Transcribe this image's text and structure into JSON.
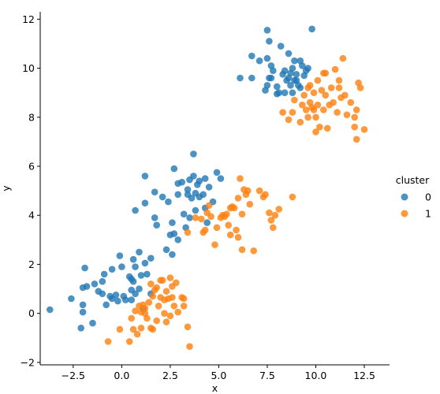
{
  "chart_data": {
    "type": "scatter",
    "xlabel": "x",
    "ylabel": "y",
    "xlim": [
      -4.2,
      13.8
    ],
    "ylim": [
      -2.1,
      12.3
    ],
    "xticks": [
      -2.5,
      0.0,
      2.5,
      5.0,
      7.5,
      10.0,
      12.5
    ],
    "xtick_labels": [
      "−2.5",
      "0.0",
      "2.5",
      "5.0",
      "7.5",
      "10.0",
      "12.5"
    ],
    "yticks": [
      -2,
      0,
      2,
      4,
      6,
      8,
      10,
      12
    ],
    "ytick_labels": [
      "−2",
      "0",
      "2",
      "4",
      "6",
      "8",
      "10",
      "12"
    ],
    "grid": false,
    "legend": {
      "title": "cluster",
      "placement": "right"
    },
    "series": [
      {
        "name": "0",
        "color": "#1f77b4",
        "points": [
          [
            -3.7,
            0.15
          ],
          [
            -2.6,
            0.6
          ],
          [
            -2.1,
            -0.6
          ],
          [
            -2.0,
            0.05
          ],
          [
            -2.0,
            1.05
          ],
          [
            -1.9,
            1.85
          ],
          [
            -1.8,
            1.1
          ],
          [
            -2.0,
            0.35
          ],
          [
            -1.5,
            -0.4
          ],
          [
            -1.4,
            1.2
          ],
          [
            -1.2,
            0.9
          ],
          [
            -1.0,
            1.3
          ],
          [
            -1.0,
            0.8
          ],
          [
            -0.9,
            1.6
          ],
          [
            -0.8,
            0.35
          ],
          [
            -0.6,
            0.7
          ],
          [
            -0.5,
            1.8
          ],
          [
            -0.5,
            0.6
          ],
          [
            -0.3,
            0.75
          ],
          [
            -0.2,
            0.5
          ],
          [
            -0.1,
            2.35
          ],
          [
            0.0,
            1.9
          ],
          [
            0.1,
            0.7
          ],
          [
            0.2,
            0.55
          ],
          [
            0.4,
            1.5
          ],
          [
            0.5,
            1.4
          ],
          [
            0.5,
            0.95
          ],
          [
            0.6,
            2.2
          ],
          [
            0.5,
            0.55
          ],
          [
            0.6,
            1.3
          ],
          [
            0.7,
            1.9
          ],
          [
            0.7,
            0.8
          ],
          [
            0.9,
            1.0
          ],
          [
            0.9,
            2.5
          ],
          [
            1.0,
            1.55
          ],
          [
            1.1,
            0.2
          ],
          [
            1.2,
            2.05
          ],
          [
            1.3,
            1.6
          ],
          [
            1.5,
            0.8
          ],
          [
            1.5,
            2.25
          ],
          [
            0.7,
            4.2
          ],
          [
            1.2,
            5.6
          ],
          [
            1.2,
            4.5
          ],
          [
            1.7,
            4.95
          ],
          [
            1.7,
            3.9
          ],
          [
            1.8,
            3.6
          ],
          [
            2.1,
            4.75
          ],
          [
            2.4,
            4.55
          ],
          [
            2.5,
            3.2
          ],
          [
            2.6,
            3.7
          ],
          [
            2.7,
            3.25
          ],
          [
            2.7,
            5.9
          ],
          [
            2.9,
            5.3
          ],
          [
            2.9,
            4.85
          ],
          [
            3.1,
            5.35
          ],
          [
            3.2,
            4.05
          ],
          [
            3.3,
            3.5
          ],
          [
            3.4,
            4.85
          ],
          [
            3.4,
            5.05
          ],
          [
            3.5,
            3.9
          ],
          [
            3.5,
            5.45
          ],
          [
            3.6,
            4.7
          ],
          [
            3.7,
            6.5
          ],
          [
            3.7,
            5.6
          ],
          [
            3.8,
            4.9
          ],
          [
            3.8,
            4.2
          ],
          [
            3.9,
            5.25
          ],
          [
            4.0,
            4.75
          ],
          [
            4.0,
            5.4
          ],
          [
            4.2,
            4.85
          ],
          [
            4.3,
            4.3
          ],
          [
            4.3,
            5.5
          ],
          [
            4.4,
            3.7
          ],
          [
            4.5,
            5.15
          ],
          [
            4.7,
            4.55
          ],
          [
            4.9,
            5.75
          ],
          [
            5.1,
            5.5
          ],
          [
            2.3,
            2.6
          ],
          [
            2.6,
            2.4
          ],
          [
            2.9,
            3.0
          ],
          [
            6.1,
            9.6
          ],
          [
            6.7,
            9.6
          ],
          [
            6.7,
            10.5
          ],
          [
            7.1,
            10.3
          ],
          [
            7.4,
            9.1
          ],
          [
            7.5,
            9.3
          ],
          [
            7.5,
            10.4
          ],
          [
            7.5,
            11.55
          ],
          [
            7.6,
            11.1
          ],
          [
            7.7,
            9.6
          ],
          [
            7.7,
            10.1
          ],
          [
            7.8,
            9.9
          ],
          [
            8.0,
            9.25
          ],
          [
            8.1,
            9.0
          ],
          [
            8.2,
            10.9
          ],
          [
            8.3,
            9.75
          ],
          [
            8.4,
            9.9
          ],
          [
            8.5,
            9.5
          ],
          [
            8.6,
            10.6
          ],
          [
            8.7,
            9.3
          ],
          [
            8.7,
            9.8
          ],
          [
            8.8,
            10.0
          ],
          [
            8.9,
            10.3
          ],
          [
            9.0,
            9.5
          ],
          [
            9.0,
            9.75
          ],
          [
            9.1,
            9.3
          ],
          [
            9.2,
            10.3
          ],
          [
            9.3,
            10.1
          ],
          [
            9.4,
            9.7
          ],
          [
            9.6,
            10.0
          ],
          [
            9.8,
            11.6
          ],
          [
            8.0,
            8.95
          ],
          [
            8.4,
            9.0
          ],
          [
            8.8,
            9.0
          ],
          [
            9.2,
            9.2
          ],
          [
            8.6,
            9.6
          ],
          [
            9.5,
            9.9
          ],
          [
            7.6,
            9.6
          ],
          [
            8.9,
            9.5
          ]
        ]
      },
      {
        "name": "1",
        "color": "#ff7f0e",
        "points": [
          [
            -0.7,
            -1.15
          ],
          [
            -0.1,
            -0.65
          ],
          [
            0.4,
            -1.15
          ],
          [
            0.5,
            -0.2
          ],
          [
            0.6,
            -0.65
          ],
          [
            0.7,
            0.1
          ],
          [
            0.8,
            -0.85
          ],
          [
            0.9,
            0.3
          ],
          [
            1.0,
            0.05
          ],
          [
            1.0,
            -0.6
          ],
          [
            1.1,
            0.35
          ],
          [
            1.2,
            0.2
          ],
          [
            1.3,
            -0.2
          ],
          [
            1.4,
            0.45
          ],
          [
            1.5,
            -0.6
          ],
          [
            1.5,
            1.2
          ],
          [
            1.6,
            0.7
          ],
          [
            1.7,
            0.95
          ],
          [
            1.8,
            1.05
          ],
          [
            1.8,
            -0.3
          ],
          [
            1.9,
            0.3
          ],
          [
            2.0,
            0.65
          ],
          [
            2.1,
            1.35
          ],
          [
            2.2,
            0.55
          ],
          [
            2.3,
            -0.35
          ],
          [
            2.3,
            0.9
          ],
          [
            2.4,
            0.6
          ],
          [
            2.5,
            1.45
          ],
          [
            2.5,
            -0.1
          ],
          [
            2.6,
            1.1
          ],
          [
            2.6,
            0.65
          ],
          [
            2.7,
            0.3
          ],
          [
            2.8,
            1.25
          ],
          [
            2.9,
            0.05
          ],
          [
            3.1,
            0.65
          ],
          [
            3.2,
            0.3
          ],
          [
            3.4,
            -0.55
          ],
          [
            3.5,
            -1.35
          ],
          [
            2.0,
            1.35
          ],
          [
            1.6,
            -0.65
          ],
          [
            1.2,
            0.0
          ],
          [
            3.2,
            0.6
          ],
          [
            2.2,
            0.0
          ],
          [
            3.4,
            3.3
          ],
          [
            3.8,
            3.9
          ],
          [
            4.1,
            3.85
          ],
          [
            4.2,
            3.3
          ],
          [
            4.3,
            3.4
          ],
          [
            4.4,
            4.1
          ],
          [
            4.5,
            4.4
          ],
          [
            4.6,
            3.95
          ],
          [
            4.8,
            2.8
          ],
          [
            4.9,
            3.5
          ],
          [
            5.1,
            3.9
          ],
          [
            5.2,
            4.0
          ],
          [
            5.3,
            3.95
          ],
          [
            5.4,
            4.05
          ],
          [
            5.5,
            3.6
          ],
          [
            5.6,
            4.3
          ],
          [
            5.7,
            4.35
          ],
          [
            5.8,
            4.3
          ],
          [
            5.9,
            3.4
          ],
          [
            6.0,
            3.1
          ],
          [
            6.0,
            4.7
          ],
          [
            6.1,
            5.5
          ],
          [
            6.2,
            4.05
          ],
          [
            6.3,
            5.05
          ],
          [
            6.4,
            4.85
          ],
          [
            6.5,
            5.0
          ],
          [
            6.6,
            4.45
          ],
          [
            6.2,
            2.6
          ],
          [
            6.8,
            2.55
          ],
          [
            7.1,
            5.0
          ],
          [
            7.3,
            4.75
          ],
          [
            7.4,
            4.85
          ],
          [
            7.6,
            4.1
          ],
          [
            7.7,
            3.8
          ],
          [
            7.8,
            3.5
          ],
          [
            7.9,
            4.0
          ],
          [
            8.1,
            4.25
          ],
          [
            8.8,
            4.75
          ],
          [
            5.6,
            3.2
          ],
          [
            8.3,
            8.2
          ],
          [
            8.6,
            7.9
          ],
          [
            8.8,
            8.2
          ],
          [
            8.9,
            8.7
          ],
          [
            9.2,
            7.8
          ],
          [
            9.3,
            8.5
          ],
          [
            9.4,
            8.9
          ],
          [
            9.5,
            8.3
          ],
          [
            9.6,
            9.2
          ],
          [
            9.7,
            8.6
          ],
          [
            9.8,
            8.4
          ],
          [
            9.9,
            9.0
          ],
          [
            10.0,
            7.4
          ],
          [
            10.1,
            8.5
          ],
          [
            10.1,
            9.5
          ],
          [
            10.2,
            7.6
          ],
          [
            10.3,
            9.1
          ],
          [
            10.4,
            8.3
          ],
          [
            10.5,
            8.9
          ],
          [
            10.5,
            9.8
          ],
          [
            10.6,
            7.55
          ],
          [
            10.7,
            8.5
          ],
          [
            10.8,
            9.2
          ],
          [
            10.9,
            8.6
          ],
          [
            11.0,
            9.95
          ],
          [
            11.1,
            8.2
          ],
          [
            11.2,
            9.5
          ],
          [
            11.3,
            8.8
          ],
          [
            11.4,
            10.4
          ],
          [
            11.5,
            8.9
          ],
          [
            11.8,
            8.6
          ],
          [
            12.0,
            8.0
          ],
          [
            12.1,
            7.1
          ],
          [
            12.0,
            7.6
          ],
          [
            12.2,
            9.4
          ],
          [
            12.3,
            9.2
          ],
          [
            12.5,
            7.5
          ],
          [
            11.6,
            8.1
          ],
          [
            10.0,
            8.0
          ],
          [
            9.9,
            8.3
          ],
          [
            9.6,
            8.0
          ],
          [
            12.1,
            8.3
          ],
          [
            9.7,
            9.3
          ],
          [
            10.4,
            9.8
          ],
          [
            11.2,
            9.2
          ]
        ]
      }
    ]
  }
}
